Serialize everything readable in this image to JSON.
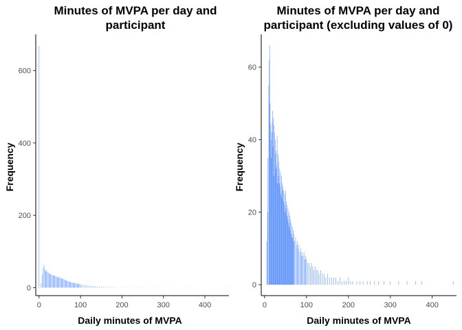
{
  "chart_data": [
    {
      "type": "bar",
      "title_lines": [
        "Minutes of MVPA per day and",
        "participant"
      ],
      "xlabel": "Daily minutes of MVPA",
      "ylabel": "Frequency",
      "xlim": [
        -8,
        458
      ],
      "ylim": [
        -22,
        700
      ],
      "xticks": [
        0,
        100,
        200,
        300,
        400
      ],
      "yticks": [
        0,
        200,
        400,
        600
      ],
      "bar_color": "#4d88ff",
      "grid": false,
      "legend": "none",
      "points": [
        [
          0,
          668
        ],
        [
          5,
          12
        ],
        [
          8,
          35
        ],
        [
          10,
          55
        ],
        [
          12,
          63
        ],
        [
          14,
          50
        ],
        [
          16,
          45
        ],
        [
          18,
          48
        ],
        [
          20,
          44
        ],
        [
          22,
          42
        ],
        [
          24,
          40
        ],
        [
          26,
          38
        ],
        [
          28,
          38
        ],
        [
          30,
          36
        ],
        [
          32,
          35
        ],
        [
          34,
          34
        ],
        [
          36,
          33
        ],
        [
          38,
          33
        ],
        [
          40,
          32
        ],
        [
          42,
          30
        ],
        [
          44,
          30
        ],
        [
          46,
          29
        ],
        [
          48,
          28
        ],
        [
          50,
          28
        ],
        [
          52,
          27
        ],
        [
          54,
          26
        ],
        [
          56,
          25
        ],
        [
          58,
          24
        ],
        [
          60,
          23
        ],
        [
          62,
          22
        ],
        [
          64,
          21
        ],
        [
          66,
          20
        ],
        [
          68,
          19
        ],
        [
          70,
          18
        ],
        [
          72,
          17
        ],
        [
          74,
          16
        ],
        [
          76,
          15
        ],
        [
          78,
          15
        ],
        [
          80,
          14
        ],
        [
          82,
          14
        ],
        [
          84,
          13
        ],
        [
          86,
          13
        ],
        [
          88,
          12
        ],
        [
          90,
          12
        ],
        [
          92,
          11
        ],
        [
          94,
          11
        ],
        [
          96,
          10
        ],
        [
          98,
          10
        ],
        [
          100,
          9
        ],
        [
          104,
          8
        ],
        [
          108,
          8
        ],
        [
          112,
          7
        ],
        [
          116,
          6
        ],
        [
          120,
          6
        ],
        [
          124,
          5
        ],
        [
          128,
          5
        ],
        [
          132,
          4
        ],
        [
          136,
          4
        ],
        [
          140,
          4
        ],
        [
          145,
          3
        ],
        [
          150,
          3
        ],
        [
          155,
          3
        ],
        [
          160,
          2
        ],
        [
          165,
          2
        ],
        [
          170,
          2
        ],
        [
          175,
          2
        ],
        [
          180,
          2
        ],
        [
          190,
          1
        ],
        [
          200,
          1
        ],
        [
          210,
          1
        ],
        [
          220,
          1
        ],
        [
          235,
          1
        ],
        [
          250,
          1
        ],
        [
          265,
          1
        ],
        [
          280,
          1
        ],
        [
          300,
          1
        ],
        [
          330,
          1
        ],
        [
          355,
          1
        ],
        [
          370,
          1
        ],
        [
          450,
          1
        ]
      ]
    },
    {
      "type": "bar",
      "title_lines": [
        "Minutes of MVPA per day and",
        "participant (excluding values of 0)"
      ],
      "xlabel": "Daily minutes of MVPA",
      "ylabel": "Frequency",
      "xlim": [
        -8,
        458
      ],
      "ylim": [
        -3,
        69
      ],
      "xticks": [
        0,
        100,
        200,
        300,
        400
      ],
      "yticks": [
        0,
        20,
        40,
        60
      ],
      "bar_color": "#4d88ff",
      "grid": false,
      "legend": "none",
      "points": [
        [
          5,
          12
        ],
        [
          7,
          20
        ],
        [
          8,
          35
        ],
        [
          10,
          55
        ],
        [
          11,
          62
        ],
        [
          12,
          66
        ],
        [
          13,
          50
        ],
        [
          14,
          44
        ],
        [
          15,
          40
        ],
        [
          16,
          35
        ],
        [
          17,
          42
        ],
        [
          18,
          45
        ],
        [
          19,
          48
        ],
        [
          20,
          38
        ],
        [
          21,
          46
        ],
        [
          22,
          44
        ],
        [
          23,
          30
        ],
        [
          24,
          42
        ],
        [
          25,
          36
        ],
        [
          26,
          40
        ],
        [
          27,
          32
        ],
        [
          28,
          37
        ],
        [
          29,
          33
        ],
        [
          30,
          41
        ],
        [
          31,
          28
        ],
        [
          32,
          36
        ],
        [
          33,
          30
        ],
        [
          34,
          34
        ],
        [
          35,
          28
        ],
        [
          36,
          32
        ],
        [
          37,
          27
        ],
        [
          38,
          31
        ],
        [
          39,
          25
        ],
        [
          40,
          30
        ],
        [
          41,
          24
        ],
        [
          42,
          28
        ],
        [
          43,
          26
        ],
        [
          44,
          27
        ],
        [
          45,
          23
        ],
        [
          46,
          26
        ],
        [
          47,
          22
        ],
        [
          48,
          25
        ],
        [
          49,
          20
        ],
        [
          50,
          26
        ],
        [
          51,
          21
        ],
        [
          52,
          23
        ],
        [
          53,
          19
        ],
        [
          54,
          22
        ],
        [
          55,
          18
        ],
        [
          56,
          21
        ],
        [
          57,
          17
        ],
        [
          58,
          20
        ],
        [
          59,
          16
        ],
        [
          60,
          19
        ],
        [
          61,
          15
        ],
        [
          62,
          18
        ],
        [
          63,
          14
        ],
        [
          64,
          17
        ],
        [
          65,
          13
        ],
        [
          66,
          16
        ],
        [
          67,
          13
        ],
        [
          68,
          15
        ],
        [
          69,
          12
        ],
        [
          70,
          14
        ],
        [
          72,
          12
        ],
        [
          74,
          13
        ],
        [
          76,
          11
        ],
        [
          78,
          12
        ],
        [
          80,
          10
        ],
        [
          82,
          11
        ],
        [
          84,
          9
        ],
        [
          86,
          10
        ],
        [
          88,
          8
        ],
        [
          90,
          9
        ],
        [
          92,
          8
        ],
        [
          94,
          9
        ],
        [
          96,
          7
        ],
        [
          98,
          8
        ],
        [
          100,
          7
        ],
        [
          103,
          6
        ],
        [
          106,
          6
        ],
        [
          109,
          5
        ],
        [
          112,
          6
        ],
        [
          115,
          5
        ],
        [
          118,
          4
        ],
        [
          121,
          5
        ],
        [
          124,
          4
        ],
        [
          127,
          4
        ],
        [
          130,
          3
        ],
        [
          134,
          4
        ],
        [
          138,
          3
        ],
        [
          142,
          3
        ],
        [
          146,
          2
        ],
        [
          150,
          3
        ],
        [
          155,
          2
        ],
        [
          160,
          2
        ],
        [
          165,
          2
        ],
        [
          170,
          2
        ],
        [
          175,
          1
        ],
        [
          180,
          2
        ],
        [
          185,
          1
        ],
        [
          190,
          1
        ],
        [
          195,
          1
        ],
        [
          200,
          2
        ],
        [
          205,
          1
        ],
        [
          210,
          1
        ],
        [
          220,
          1
        ],
        [
          228,
          1
        ],
        [
          235,
          1
        ],
        [
          245,
          1
        ],
        [
          252,
          1
        ],
        [
          262,
          1
        ],
        [
          272,
          1
        ],
        [
          285,
          1
        ],
        [
          300,
          1
        ],
        [
          320,
          1
        ],
        [
          340,
          1
        ],
        [
          360,
          1
        ],
        [
          375,
          1
        ],
        [
          450,
          1
        ]
      ]
    }
  ]
}
